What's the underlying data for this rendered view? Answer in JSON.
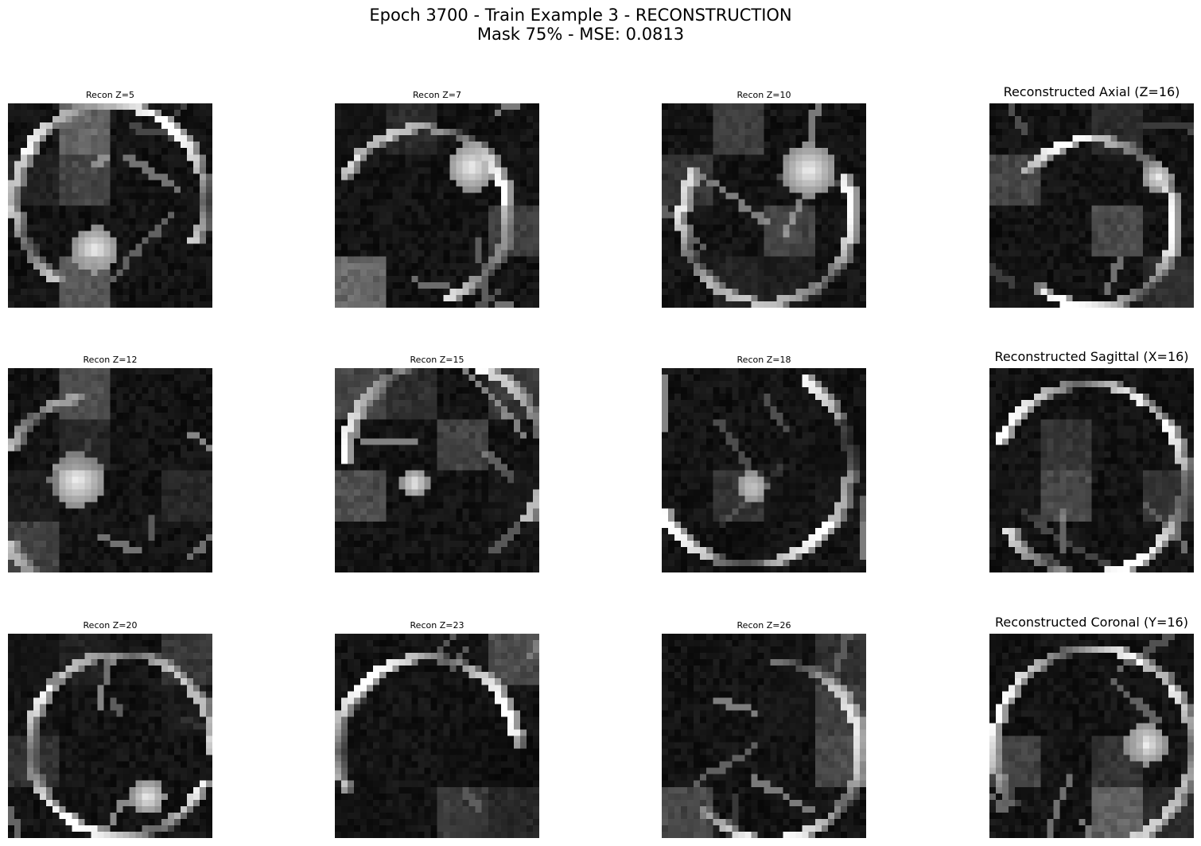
{
  "figure": {
    "title_line1": "Epoch 3700 - Train Example 3 - RECONSTRUCTION",
    "title_line2": "Mask 75% - MSE: 0.0813"
  },
  "panels": [
    {
      "title": "Recon Z=5",
      "style": "small",
      "row": 0,
      "col": 0,
      "seed": 5
    },
    {
      "title": "Recon Z=7",
      "style": "small",
      "row": 0,
      "col": 1,
      "seed": 7
    },
    {
      "title": "Recon Z=10",
      "style": "small",
      "row": 0,
      "col": 2,
      "seed": 10
    },
    {
      "title": "Reconstructed Axial (Z=16)",
      "style": "big",
      "row": 0,
      "col": 3,
      "seed": 16
    },
    {
      "title": "Recon Z=12",
      "style": "small",
      "row": 1,
      "col": 0,
      "seed": 12
    },
    {
      "title": "Recon Z=15",
      "style": "small",
      "row": 1,
      "col": 1,
      "seed": 15
    },
    {
      "title": "Recon Z=18",
      "style": "small",
      "row": 1,
      "col": 2,
      "seed": 18
    },
    {
      "title": "Reconstructed Sagittal (X=16)",
      "style": "big",
      "row": 1,
      "col": 3,
      "seed": 33
    },
    {
      "title": "Recon Z=20",
      "style": "small",
      "row": 2,
      "col": 0,
      "seed": 20
    },
    {
      "title": "Recon Z=23",
      "style": "small",
      "row": 2,
      "col": 1,
      "seed": 23
    },
    {
      "title": "Recon Z=26",
      "style": "small",
      "row": 2,
      "col": 2,
      "seed": 26
    },
    {
      "title": "Reconstructed Coronal (Y=16)",
      "style": "big",
      "row": 2,
      "col": 3,
      "seed": 49
    }
  ]
}
